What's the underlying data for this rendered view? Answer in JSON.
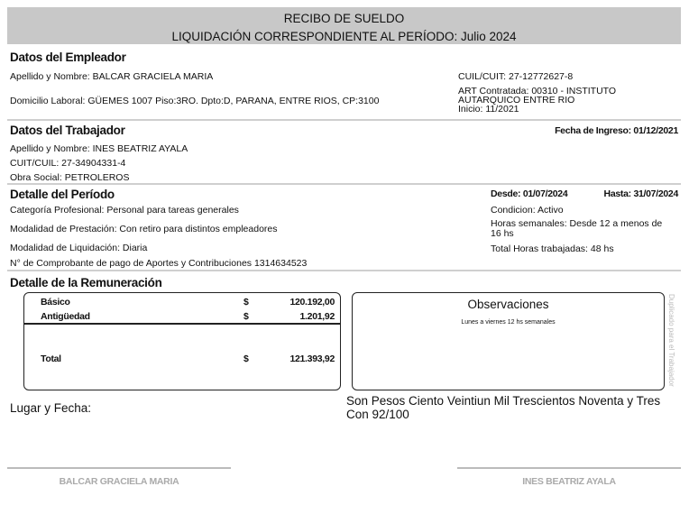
{
  "header": {
    "title": "RECIBO DE SUELDO",
    "subtitle": "LIQUIDACIÓN CORRESPONDIENTE AL PERÍODO: Julio 2024"
  },
  "empleador": {
    "heading": "Datos del Empleador",
    "nombre": "Apellido y Nombre: BALCAR GRACIELA MARIA",
    "domicilio": "Domicilio Laboral: GÜEMES 1007 Piso:3RO. Dpto:D, PARANA, ENTRE RIOS, CP:3100",
    "cuit": "CUIL/CUIT: 27-12772627-8",
    "art_line1": "ART Contratada: 00310 - INSTITUTO",
    "art_line2": "AUTARQUICO ENTRE RIO",
    "art_inicio": "Inicio: 11/2021"
  },
  "trabajador": {
    "heading": "Datos del Trabajador",
    "fecha_ingreso": "Fecha de Ingreso: 01/12/2021",
    "nombre": "Apellido y Nombre: INES BEATRIZ AYALA",
    "cuit": "CUIT/CUIL: 27-34904331-4",
    "obra_social": "Obra Social: PETROLEROS"
  },
  "periodo": {
    "heading": "Detalle del Período",
    "desde": "Desde: 01/07/2024",
    "hasta": "Hasta: 31/07/2024",
    "categoria": "Categoría Profesional: Personal para tareas generales",
    "prestacion": "Modalidad de Prestación: Con retiro para distintos empleadores",
    "liquidacion": "Modalidad de Liquidación: Diaria",
    "comprobante": "N° de Comprobante de pago de Aportes y Contribuciones 1314634523",
    "condicion": "Condicion: Activo",
    "horas_line1": "Horas semanales: Desde 12 a menos de",
    "horas_line2": "16 hs",
    "total_horas": "Total Horas trabajadas: 48 hs"
  },
  "remuneracion": {
    "heading": "Detalle de la Remuneración",
    "items": [
      {
        "concepto": "Básico",
        "moneda": "$",
        "importe": "120.192,00"
      },
      {
        "concepto": "Antigüedad",
        "moneda": "$",
        "importe": "1.201,92"
      }
    ],
    "total": {
      "concepto": "Total",
      "moneda": "$",
      "importe": "121.393,92"
    }
  },
  "observaciones": {
    "heading": "Observaciones",
    "text": "Lunes a viernes 12 hs semanales"
  },
  "duplicado": "Duplicado para el Trabajador",
  "lugar_fecha": "Lugar y Fecha:",
  "son_pesos_line1": "Son Pesos Ciento  Veintiun Mil Trescientos Noventa y Tres",
  "son_pesos_line2": "Con  92/100",
  "firmas": {
    "empleador": "BALCAR GRACIELA MARIA",
    "trabajador": "INES BEATRIZ AYALA"
  }
}
